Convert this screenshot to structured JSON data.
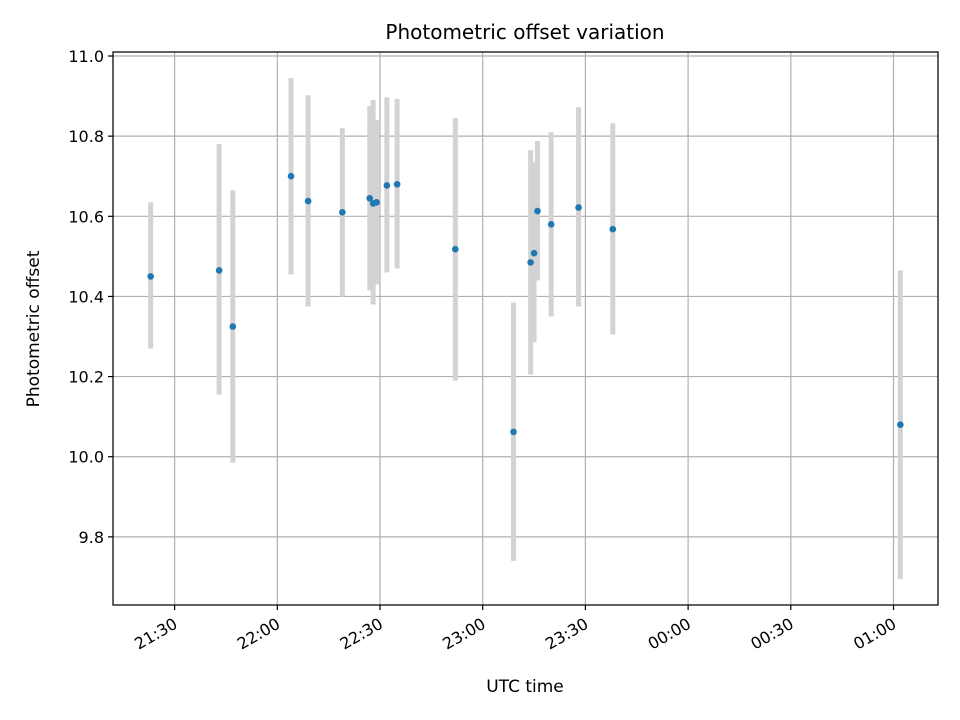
{
  "chart_data": {
    "type": "scatter",
    "title": "Photometric offset variation",
    "xlabel": "UTC time",
    "ylabel": "Photometric offset",
    "xlim": [
      "21:12",
      "01:13"
    ],
    "ylim": [
      9.63,
      11.01
    ],
    "grid": true,
    "x_ticks": [
      "21:30",
      "22:00",
      "22:30",
      "23:00",
      "23:30",
      "00:00",
      "00:30",
      "01:00"
    ],
    "y_ticks": [
      9.8,
      10.0,
      10.2,
      10.4,
      10.6,
      10.8,
      11.0
    ],
    "y_tick_labels": [
      "9.8",
      "10.0",
      "10.2",
      "10.4",
      "10.6",
      "10.8",
      "11.0"
    ],
    "colors": {
      "point": "#1f77b4",
      "errorbar": "#d3d3d3",
      "grid": "#b0b0b0"
    },
    "series": [
      {
        "points": [
          {
            "x": "21:23",
            "y": 10.45,
            "ylow": 10.27,
            "yhigh": 10.635
          },
          {
            "x": "21:43",
            "y": 10.465,
            "ylow": 10.155,
            "yhigh": 10.78
          },
          {
            "x": "21:47",
            "y": 10.325,
            "ylow": 9.985,
            "yhigh": 10.665
          },
          {
            "x": "22:04",
            "y": 10.7,
            "ylow": 10.455,
            "yhigh": 10.945
          },
          {
            "x": "22:09",
            "y": 10.638,
            "ylow": 10.375,
            "yhigh": 10.902
          },
          {
            "x": "22:19",
            "y": 10.61,
            "ylow": 10.4,
            "yhigh": 10.82
          },
          {
            "x": "22:27",
            "y": 10.645,
            "ylow": 10.415,
            "yhigh": 10.875
          },
          {
            "x": "22:28",
            "y": 10.632,
            "ylow": 10.38,
            "yhigh": 10.89
          },
          {
            "x": "22:29",
            "y": 10.635,
            "ylow": 10.43,
            "yhigh": 10.84
          },
          {
            "x": "22:32",
            "y": 10.677,
            "ylow": 10.46,
            "yhigh": 10.897
          },
          {
            "x": "22:35",
            "y": 10.68,
            "ylow": 10.47,
            "yhigh": 10.893
          },
          {
            "x": "22:52",
            "y": 10.518,
            "ylow": 10.19,
            "yhigh": 10.845
          },
          {
            "x": "23:09",
            "y": 10.062,
            "ylow": 9.74,
            "yhigh": 10.385
          },
          {
            "x": "23:14",
            "y": 10.485,
            "ylow": 10.205,
            "yhigh": 10.765
          },
          {
            "x": "23:15",
            "y": 10.508,
            "ylow": 10.285,
            "yhigh": 10.735
          },
          {
            "x": "23:16",
            "y": 10.613,
            "ylow": 10.44,
            "yhigh": 10.788
          },
          {
            "x": "23:20",
            "y": 10.58,
            "ylow": 10.35,
            "yhigh": 10.81
          },
          {
            "x": "23:28",
            "y": 10.622,
            "ylow": 10.375,
            "yhigh": 10.872
          },
          {
            "x": "23:38",
            "y": 10.568,
            "ylow": 10.305,
            "yhigh": 10.832
          },
          {
            "x": "01:02",
            "y": 10.08,
            "ylow": 9.695,
            "yhigh": 10.465
          }
        ]
      }
    ]
  }
}
